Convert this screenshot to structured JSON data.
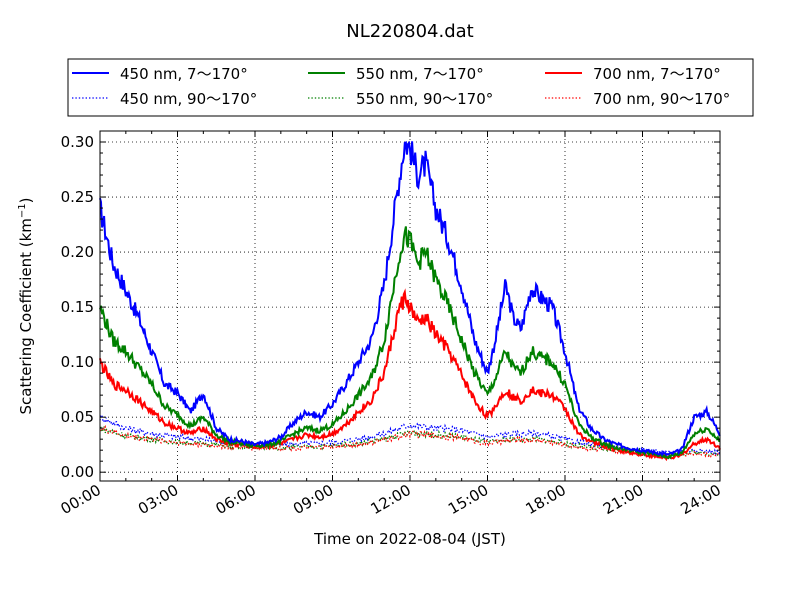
{
  "chart_data": {
    "type": "line",
    "title": "NL220804.dat",
    "xlabel": "Time on 2022-08-04 (JST)",
    "ylabel": "Scattering Coefficient (km",
    "ylabel_sup": "−1",
    "ylabel_end": ")",
    "xlim": [
      0,
      24
    ],
    "ylim": [
      -0.008,
      0.31
    ],
    "x_ticks": [
      {
        "value": 0,
        "label": "00:00"
      },
      {
        "value": 3,
        "label": "03:00"
      },
      {
        "value": 6,
        "label": "06:00"
      },
      {
        "value": 9,
        "label": "09:00"
      },
      {
        "value": 12,
        "label": "12:00"
      },
      {
        "value": 15,
        "label": "15:00"
      },
      {
        "value": 18,
        "label": "18:00"
      },
      {
        "value": 21,
        "label": "21:00"
      },
      {
        "value": 24,
        "label": "24:00"
      }
    ],
    "y_ticks": [
      {
        "value": 0.0,
        "label": "0.00"
      },
      {
        "value": 0.05,
        "label": "0.05"
      },
      {
        "value": 0.1,
        "label": "0.10"
      },
      {
        "value": 0.15,
        "label": "0.15"
      },
      {
        "value": 0.2,
        "label": "0.20"
      },
      {
        "value": 0.25,
        "label": "0.25"
      },
      {
        "value": 0.3,
        "label": "0.30"
      }
    ],
    "grid": true,
    "legend_position": "top",
    "series": [
      {
        "name": "450 nm, 7～170°",
        "color": "#0000ff",
        "style": "solid",
        "x": [
          0,
          0.5,
          1,
          1.5,
          2,
          2.5,
          3,
          3.5,
          4,
          4.5,
          5,
          5.5,
          6,
          6.5,
          7,
          7.5,
          8,
          8.5,
          9,
          9.5,
          10,
          10.5,
          11,
          11.3,
          11.6,
          11.8,
          12,
          12.3,
          12.6,
          13,
          13.5,
          14,
          14.5,
          15,
          15.3,
          15.7,
          16,
          16.3,
          16.7,
          17,
          17.5,
          18,
          18.5,
          19,
          19.5,
          20,
          20.5,
          21,
          21.5,
          22,
          22.5,
          23,
          23.5,
          24
        ],
        "y": [
          0.24,
          0.19,
          0.165,
          0.14,
          0.11,
          0.08,
          0.072,
          0.055,
          0.072,
          0.04,
          0.03,
          0.028,
          0.025,
          0.027,
          0.032,
          0.045,
          0.055,
          0.05,
          0.062,
          0.08,
          0.1,
          0.12,
          0.17,
          0.22,
          0.27,
          0.3,
          0.295,
          0.27,
          0.28,
          0.24,
          0.21,
          0.17,
          0.12,
          0.09,
          0.12,
          0.17,
          0.14,
          0.13,
          0.168,
          0.16,
          0.15,
          0.11,
          0.06,
          0.04,
          0.03,
          0.025,
          0.022,
          0.02,
          0.018,
          0.016,
          0.02,
          0.05,
          0.055,
          0.035
        ]
      },
      {
        "name": "450 nm, 90～170°",
        "color": "#0000ff",
        "style": "dotted",
        "x": [
          0,
          1,
          2,
          3,
          4,
          5,
          6,
          7,
          8,
          9,
          10,
          11,
          12,
          13,
          14,
          15,
          16,
          17,
          18,
          19,
          20,
          21,
          22,
          23,
          24
        ],
        "y": [
          0.05,
          0.04,
          0.035,
          0.032,
          0.03,
          0.027,
          0.024,
          0.025,
          0.026,
          0.027,
          0.03,
          0.035,
          0.043,
          0.04,
          0.038,
          0.032,
          0.035,
          0.035,
          0.03,
          0.025,
          0.022,
          0.02,
          0.018,
          0.02,
          0.018
        ]
      },
      {
        "name": "550 nm, 7～170°",
        "color": "#008000",
        "style": "solid",
        "x": [
          0,
          0.5,
          1,
          1.5,
          2,
          2.5,
          3,
          3.5,
          4,
          4.5,
          5,
          5.5,
          6,
          6.5,
          7,
          7.5,
          8,
          8.5,
          9,
          9.5,
          10,
          10.5,
          11,
          11.3,
          11.6,
          11.8,
          12,
          12.3,
          12.6,
          13,
          13.5,
          14,
          14.5,
          15,
          15.3,
          15.7,
          16,
          16.3,
          16.7,
          17,
          17.5,
          18,
          18.5,
          19,
          19.5,
          20,
          20.5,
          21,
          21.5,
          22,
          22.5,
          23,
          23.5,
          24
        ],
        "y": [
          0.15,
          0.12,
          0.11,
          0.095,
          0.08,
          0.06,
          0.052,
          0.042,
          0.05,
          0.034,
          0.028,
          0.026,
          0.024,
          0.025,
          0.028,
          0.035,
          0.04,
          0.038,
          0.043,
          0.055,
          0.07,
          0.085,
          0.12,
          0.16,
          0.2,
          0.215,
          0.21,
          0.19,
          0.2,
          0.175,
          0.15,
          0.12,
          0.09,
          0.07,
          0.085,
          0.11,
          0.095,
          0.09,
          0.11,
          0.105,
          0.1,
          0.08,
          0.045,
          0.032,
          0.026,
          0.022,
          0.02,
          0.018,
          0.016,
          0.014,
          0.017,
          0.035,
          0.04,
          0.028
        ]
      },
      {
        "name": "550 nm, 90～170°",
        "color": "#008000",
        "style": "dotted",
        "x": [
          0,
          1,
          2,
          3,
          4,
          5,
          6,
          7,
          8,
          9,
          10,
          11,
          12,
          13,
          14,
          15,
          16,
          17,
          18,
          19,
          20,
          21,
          22,
          23,
          24
        ],
        "y": [
          0.04,
          0.033,
          0.03,
          0.027,
          0.026,
          0.024,
          0.022,
          0.022,
          0.023,
          0.024,
          0.026,
          0.03,
          0.036,
          0.034,
          0.032,
          0.027,
          0.03,
          0.03,
          0.026,
          0.022,
          0.02,
          0.018,
          0.016,
          0.018,
          0.016
        ]
      },
      {
        "name": "700 nm, 7～170°",
        "color": "#ff0000",
        "style": "solid",
        "x": [
          0,
          0.5,
          1,
          1.5,
          2,
          2.5,
          3,
          3.5,
          4,
          4.5,
          5,
          5.5,
          6,
          6.5,
          7,
          7.5,
          8,
          8.5,
          9,
          9.5,
          10,
          10.5,
          11,
          11.3,
          11.6,
          11.8,
          12,
          12.3,
          12.6,
          13,
          13.5,
          14,
          14.5,
          15,
          15.3,
          15.7,
          16,
          16.3,
          16.7,
          17,
          17.5,
          18,
          18.5,
          19,
          19.5,
          20,
          20.5,
          21,
          21.5,
          22,
          22.5,
          23,
          23.5,
          24
        ],
        "y": [
          0.1,
          0.08,
          0.075,
          0.065,
          0.055,
          0.045,
          0.04,
          0.035,
          0.04,
          0.03,
          0.026,
          0.025,
          0.023,
          0.024,
          0.026,
          0.03,
          0.034,
          0.032,
          0.035,
          0.043,
          0.055,
          0.065,
          0.09,
          0.12,
          0.15,
          0.158,
          0.15,
          0.135,
          0.14,
          0.125,
          0.11,
          0.088,
          0.065,
          0.05,
          0.06,
          0.075,
          0.068,
          0.065,
          0.075,
          0.072,
          0.07,
          0.058,
          0.035,
          0.028,
          0.024,
          0.02,
          0.018,
          0.016,
          0.014,
          0.013,
          0.015,
          0.026,
          0.03,
          0.022
        ]
      },
      {
        "name": "700 nm, 90～170°",
        "color": "#ff0000",
        "style": "dotted",
        "x": [
          0,
          1,
          2,
          3,
          4,
          5,
          6,
          7,
          8,
          9,
          10,
          11,
          12,
          13,
          14,
          15,
          16,
          17,
          18,
          19,
          20,
          21,
          22,
          23,
          24
        ],
        "y": [
          0.04,
          0.033,
          0.03,
          0.027,
          0.025,
          0.023,
          0.022,
          0.022,
          0.022,
          0.023,
          0.025,
          0.029,
          0.035,
          0.033,
          0.031,
          0.026,
          0.029,
          0.029,
          0.025,
          0.021,
          0.019,
          0.017,
          0.015,
          0.017,
          0.015
        ]
      }
    ]
  }
}
